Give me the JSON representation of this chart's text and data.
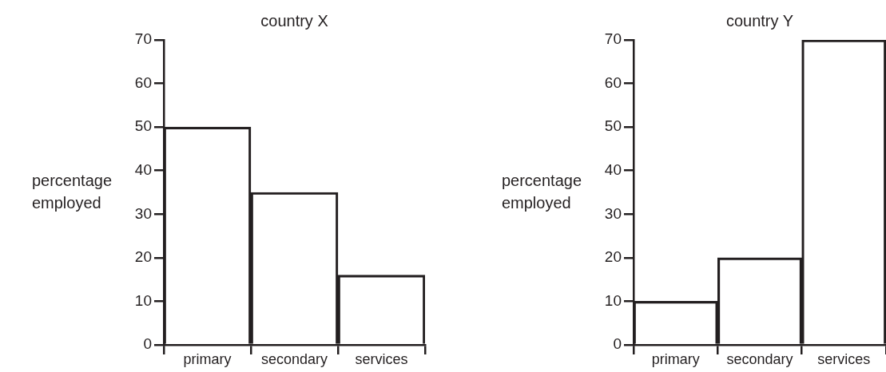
{
  "chart_data": [
    {
      "type": "bar",
      "title": "country X",
      "ylabel": "percentage employed",
      "categories": [
        "primary",
        "secondary",
        "services"
      ],
      "values": [
        50,
        35,
        16
      ],
      "color": "#231f20",
      "ylim": [
        0,
        70
      ],
      "yticks": [
        0,
        10,
        20,
        30,
        40,
        50,
        60,
        70
      ]
    },
    {
      "type": "bar",
      "title": "country Y",
      "ylabel": "percentage employed",
      "categories": [
        "primary",
        "secondary",
        "services"
      ],
      "values": [
        10,
        20,
        70
      ],
      "color": "#231f20",
      "ylim": [
        0,
        70
      ],
      "yticks": [
        0,
        10,
        20,
        30,
        40,
        50,
        60,
        70
      ]
    }
  ]
}
